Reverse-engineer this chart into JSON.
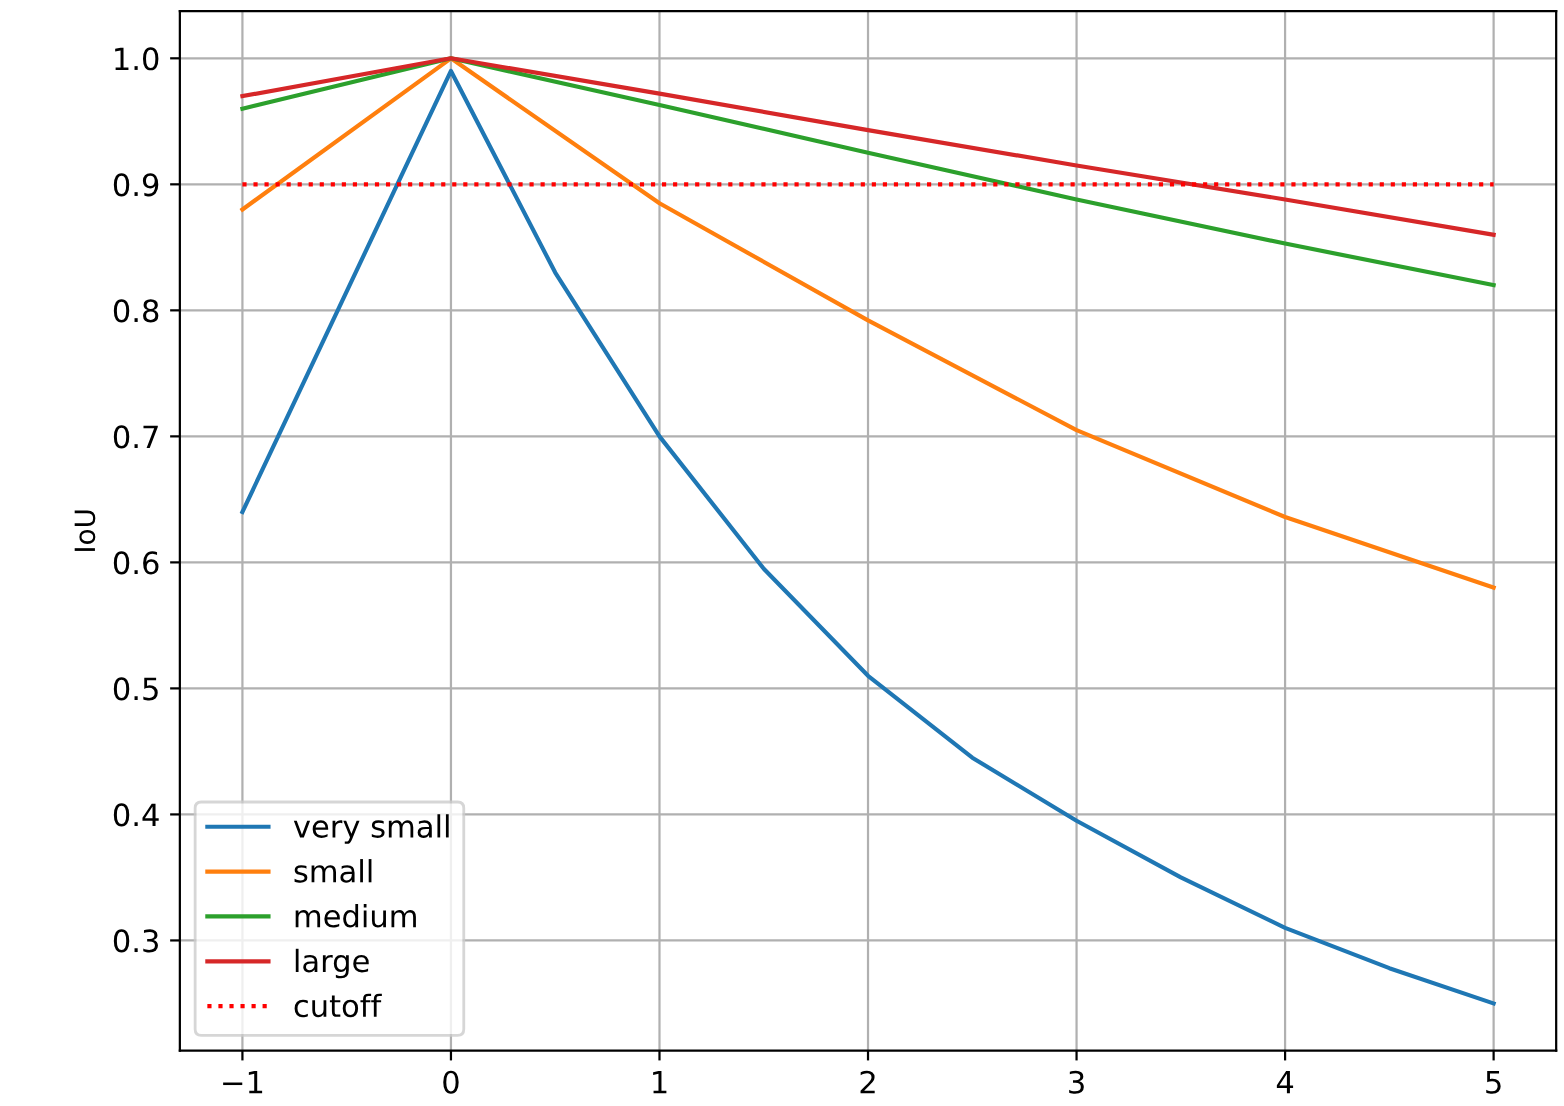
{
  "chart_data": {
    "type": "line",
    "ylabel": "IoU",
    "xlim": [
      -1.3,
      5.3
    ],
    "xticks": [
      {
        "value": -1,
        "label": "−1"
      },
      0,
      1,
      2,
      3,
      4,
      5
    ],
    "ylim": [
      0.2125,
      1.0375
    ],
    "yticks": [
      {
        "value": 0.3,
        "label": "0.3"
      },
      {
        "value": 0.4,
        "label": "0.4"
      },
      {
        "value": 0.5,
        "label": "0.5"
      },
      {
        "value": 0.6,
        "label": "0.6"
      },
      {
        "value": 0.7,
        "label": "0.7"
      },
      {
        "value": 0.8,
        "label": "0.8"
      },
      {
        "value": 0.9,
        "label": "0.9"
      },
      {
        "value": 1.0,
        "label": "1.0"
      }
    ],
    "grid": true,
    "legend": "bottom left",
    "marker": "none",
    "series": [
      {
        "name": "very small",
        "color": "#1f77b4",
        "x": [
          -1,
          0,
          0.5,
          1,
          1.5,
          2,
          2.5,
          3,
          3.5,
          4,
          4.5,
          5
        ],
        "values": [
          0.64,
          0.99,
          0.83,
          0.7,
          0.595,
          0.51,
          0.445,
          0.395,
          0.35,
          0.31,
          0.278,
          0.25
        ]
      },
      {
        "name": "small",
        "color": "#ff7f0e",
        "x": [
          -1,
          0,
          1,
          2,
          3,
          4,
          5
        ],
        "values": [
          0.88,
          1.0,
          0.885,
          0.792,
          0.705,
          0.636,
          0.58
        ]
      },
      {
        "name": "medium",
        "color": "#2ca02c",
        "x": [
          -1,
          0,
          1,
          2,
          3,
          4,
          5
        ],
        "values": [
          0.96,
          1.0,
          0.963,
          0.925,
          0.888,
          0.853,
          0.82
        ]
      },
      {
        "name": "large",
        "color": "#d62728",
        "x": [
          -1,
          0,
          1,
          2,
          3,
          4,
          5
        ],
        "values": [
          0.97,
          1.0,
          0.972,
          0.943,
          0.915,
          0.888,
          0.86
        ]
      },
      {
        "name": "cutoff",
        "color": "#ff0000",
        "line_style": "dotted",
        "x": [
          -1,
          5
        ],
        "values": [
          0.9,
          0.9
        ]
      }
    ]
  }
}
